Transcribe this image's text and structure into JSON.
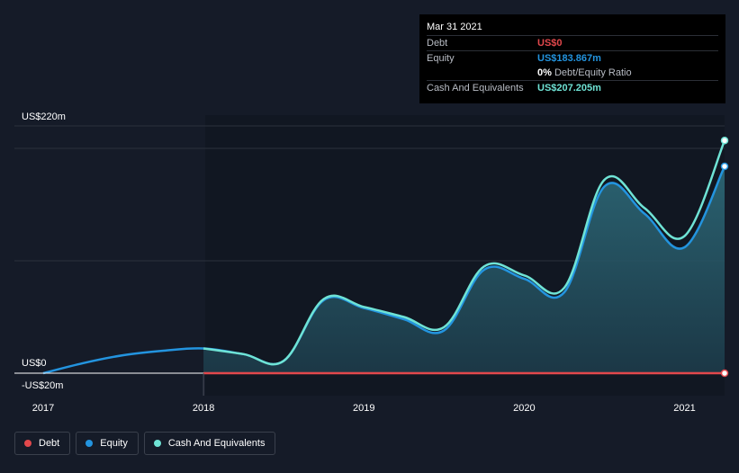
{
  "colors": {
    "debt": "#e2484c",
    "equity": "#2394df",
    "cash": "#6fe3d5",
    "grid": "#2a303c"
  },
  "tooltip": {
    "date": "Mar 31 2021",
    "debt_label": "Debt",
    "debt_value": "US$0",
    "equity_label": "Equity",
    "equity_value": "US$183.867m",
    "ratio_pct": "0%",
    "ratio_label": "Debt/Equity Ratio",
    "cash_label": "Cash And Equivalents",
    "cash_value": "US$207.205m"
  },
  "legend": {
    "debt": "Debt",
    "equity": "Equity",
    "cash": "Cash And Equivalents"
  },
  "chart_data": {
    "type": "area",
    "title": "",
    "xlabel": "",
    "ylabel": "",
    "x_unit": "year",
    "xlim": [
      2017.0,
      2021.25
    ],
    "ylim": [
      -20,
      220
    ],
    "y_tick_labels": [
      {
        "value": 220,
        "label": "US$220m"
      },
      {
        "value": 0,
        "label": "US$0"
      },
      {
        "value": -20,
        "label": "-US$20m"
      }
    ],
    "gridlines": [
      220,
      200,
      100,
      0
    ],
    "x_ticks": [
      {
        "value": 2017,
        "label": "2017"
      },
      {
        "value": 2018,
        "label": "2018"
      },
      {
        "value": 2019,
        "label": "2019"
      },
      {
        "value": 2020,
        "label": "2020"
      },
      {
        "value": 2021,
        "label": "2021"
      }
    ],
    "series": [
      {
        "name": "Debt",
        "color_key": "debt",
        "points": [
          [
            2018.0,
            0
          ],
          [
            2021.25,
            0
          ]
        ]
      },
      {
        "name": "Equity",
        "color_key": "equity",
        "points": [
          [
            2017.0,
            0
          ],
          [
            2017.25,
            9
          ],
          [
            2017.5,
            16
          ],
          [
            2017.75,
            20
          ],
          [
            2018.0,
            22
          ],
          [
            2018.25,
            17
          ],
          [
            2018.5,
            11
          ],
          [
            2018.75,
            65
          ],
          [
            2019.0,
            58
          ],
          [
            2019.25,
            48
          ],
          [
            2019.5,
            38
          ],
          [
            2019.75,
            92
          ],
          [
            2020.0,
            84
          ],
          [
            2020.25,
            72
          ],
          [
            2020.5,
            166
          ],
          [
            2020.75,
            142
          ],
          [
            2021.0,
            112
          ],
          [
            2021.25,
            184
          ]
        ]
      },
      {
        "name": "Cash And Equivalents",
        "color_key": "cash",
        "points": [
          [
            2018.0,
            22
          ],
          [
            2018.25,
            17
          ],
          [
            2018.5,
            11
          ],
          [
            2018.75,
            66
          ],
          [
            2019.0,
            59
          ],
          [
            2019.25,
            50
          ],
          [
            2019.5,
            41
          ],
          [
            2019.75,
            95
          ],
          [
            2020.0,
            87
          ],
          [
            2020.25,
            76
          ],
          [
            2020.5,
            172
          ],
          [
            2020.75,
            147
          ],
          [
            2021.0,
            122
          ],
          [
            2021.25,
            207
          ]
        ]
      }
    ]
  }
}
